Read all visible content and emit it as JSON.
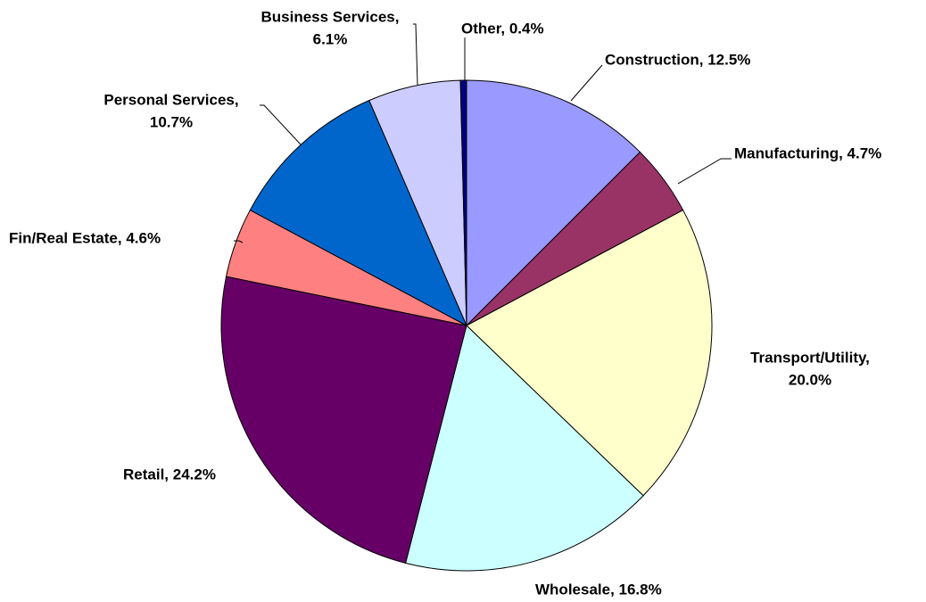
{
  "chart_data": {
    "type": "pie",
    "values": [
      12.5,
      4.7,
      20.0,
      16.8,
      24.2,
      4.6,
      10.7,
      6.1,
      0.4
    ],
    "value_labels": [
      "Construction, 12.5%",
      "Manufacturing, 4.7%",
      [
        "Transport/Utility,",
        "20.0%"
      ],
      "Wholesale, 16.8%",
      "Retail, 24.2%",
      "Fin/Real Estate, 4.6%",
      [
        "Personal Services,",
        "10.7%"
      ],
      [
        "Business Services,",
        "6.1%"
      ],
      "Other, 0.4%"
    ],
    "colors": [
      "#9999FF",
      "#993366",
      "#FFFFCC",
      "#CCFFFF",
      "#660066",
      "#FF8080",
      "#0066CC",
      "#CCCCFF",
      "#000080"
    ]
  }
}
